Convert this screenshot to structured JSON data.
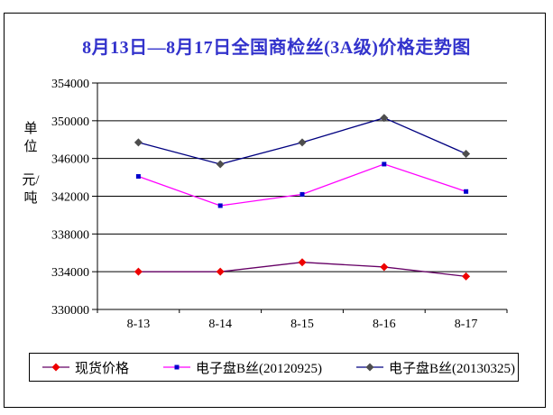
{
  "title": {
    "text": "8月13日—8月17日全国商检丝(3A级)价格走势图",
    "color": "#3333cc"
  },
  "y_axis": {
    "unit_label_top": "单位",
    "unit_label_bottom": "元/吨"
  },
  "chart_data": {
    "type": "line",
    "title": "8月13日—8月17日全国商检丝(3A级)价格走势图",
    "categories": [
      "8-13",
      "8-14",
      "8-15",
      "8-16",
      "8-17"
    ],
    "series": [
      {
        "name": "现货价格",
        "values": [
          334000,
          334000,
          335000,
          334500,
          333500
        ],
        "line_color": "#660066",
        "marker_color": "#ee0000",
        "marker": "diamond"
      },
      {
        "name": "电子盘B丝(20120925)",
        "values": [
          344100,
          341000,
          342200,
          345400,
          342500
        ],
        "line_color": "#ff00ff",
        "marker_color": "#0000cc",
        "marker": "square"
      },
      {
        "name": "电子盘B丝(20130325)",
        "values": [
          347700,
          345400,
          347700,
          350300,
          346500
        ],
        "line_color": "#000080",
        "marker_color": "#4d4d4d",
        "marker": "diamond"
      }
    ],
    "ylabel": "单位 元/吨",
    "ylim": [
      330000,
      354000
    ],
    "ytick_step": 4000,
    "grid": true,
    "legend_position": "bottom",
    "axis_color": "#000000"
  }
}
